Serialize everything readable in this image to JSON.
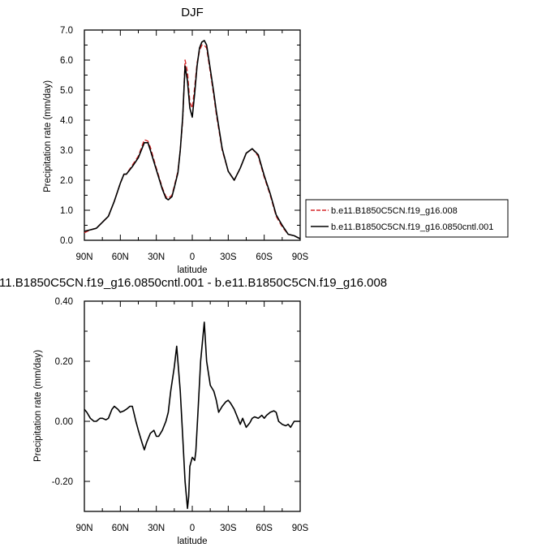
{
  "chart_data": [
    {
      "type": "line",
      "title": "DJF",
      "xlabel": "latitude",
      "ylabel": "Precipitation rate (mm/day)",
      "xlim": [
        -90,
        90
      ],
      "ylim": [
        0,
        7
      ],
      "x_ticks": [
        "90N",
        "60N",
        "30N",
        "0",
        "30S",
        "60S",
        "90S"
      ],
      "y_ticks": [
        "0.0",
        "1.0",
        "2.0",
        "3.0",
        "4.0",
        "5.0",
        "6.0",
        "7.0"
      ],
      "legend_position": "right",
      "series": [
        {
          "name": "b.e11.B1850C5CN.f19_g16.008",
          "color": "#d62728",
          "dash": true,
          "x": [
            -90,
            -85,
            -80,
            -75,
            -70,
            -65,
            -60,
            -57,
            -55,
            -50,
            -45,
            -40,
            -37,
            -35,
            -30,
            -25,
            -22,
            -20,
            -17,
            -15,
            -12,
            -10,
            -8,
            -6,
            -4,
            -2,
            0,
            2,
            4,
            6,
            8,
            10,
            12,
            15,
            18,
            20,
            25,
            30,
            35,
            40,
            45,
            50,
            55,
            60,
            65,
            70,
            75,
            80,
            85,
            90
          ],
          "values": [
            0.25,
            0.35,
            0.4,
            0.6,
            0.8,
            1.3,
            1.9,
            2.2,
            2.2,
            2.5,
            2.8,
            3.35,
            3.3,
            3.1,
            2.4,
            1.75,
            1.45,
            1.4,
            1.5,
            1.8,
            2.3,
            3.0,
            4.0,
            6.0,
            5.6,
            4.6,
            4.4,
            5.1,
            5.9,
            6.3,
            6.5,
            6.5,
            6.4,
            5.6,
            4.8,
            4.2,
            3.0,
            2.3,
            2.0,
            2.4,
            2.9,
            3.05,
            2.8,
            2.1,
            1.5,
            0.8,
            0.45,
            0.2,
            0.15,
            0.05
          ]
        },
        {
          "name": "b.e11.B1850C5CN.f19_g16.0850cntl.001",
          "color": "#000000",
          "dash": false,
          "x": [
            -90,
            -85,
            -80,
            -75,
            -70,
            -65,
            -60,
            -57,
            -55,
            -50,
            -45,
            -40,
            -37,
            -35,
            -30,
            -25,
            -22,
            -20,
            -17,
            -15,
            -12,
            -10,
            -8,
            -6,
            -4,
            -2,
            0,
            2,
            4,
            6,
            8,
            10,
            12,
            15,
            18,
            20,
            25,
            30,
            35,
            40,
            45,
            50,
            55,
            60,
            65,
            70,
            75,
            80,
            85,
            90
          ],
          "values": [
            0.3,
            0.35,
            0.4,
            0.6,
            0.8,
            1.3,
            1.9,
            2.2,
            2.2,
            2.45,
            2.75,
            3.25,
            3.25,
            3.0,
            2.35,
            1.7,
            1.4,
            1.35,
            1.45,
            1.75,
            2.25,
            3.0,
            4.1,
            5.8,
            5.3,
            4.4,
            4.1,
            4.9,
            5.8,
            6.4,
            6.6,
            6.65,
            6.5,
            5.7,
            4.9,
            4.3,
            3.05,
            2.3,
            2.0,
            2.4,
            2.9,
            3.05,
            2.85,
            2.15,
            1.55,
            0.85,
            0.5,
            0.2,
            0.15,
            0.05
          ]
        }
      ]
    },
    {
      "type": "line",
      "title": ":11.B1850C5CN.f19_g16.0850cntl.001 - b.e11.B1850C5CN.f19_g16.008",
      "xlabel": "latitude",
      "ylabel": "Precipitation rate (mm/day)",
      "xlim": [
        -90,
        90
      ],
      "ylim": [
        -0.3,
        0.4
      ],
      "x_ticks": [
        "90N",
        "60N",
        "30N",
        "0",
        "30S",
        "60S",
        "90S"
      ],
      "y_ticks": [
        "-0.20",
        "0.00",
        "0.20",
        "0.40"
      ],
      "series": [
        {
          "color": "#000000",
          "x": [
            -90,
            -88,
            -85,
            -82,
            -80,
            -77,
            -75,
            -72,
            -70,
            -67,
            -65,
            -62,
            -60,
            -57,
            -55,
            -52,
            -50,
            -47,
            -45,
            -42,
            -40,
            -38,
            -35,
            -32,
            -30,
            -28,
            -25,
            -22,
            -20,
            -18,
            -15,
            -13,
            -10,
            -8,
            -6,
            -4,
            -3,
            -2,
            0,
            2,
            3,
            5,
            7,
            10,
            12,
            15,
            18,
            20,
            22,
            25,
            28,
            30,
            32,
            35,
            38,
            40,
            42,
            45,
            48,
            50,
            52,
            55,
            58,
            60,
            62,
            65,
            68,
            70,
            72,
            75,
            78,
            80,
            82,
            85,
            88,
            90
          ],
          "values": [
            0.04,
            0.03,
            0.01,
            0.0,
            0.0,
            0.01,
            0.01,
            0.005,
            0.01,
            0.04,
            0.05,
            0.04,
            0.03,
            0.035,
            0.04,
            0.05,
            0.05,
            0.0,
            -0.03,
            -0.07,
            -0.095,
            -0.07,
            -0.04,
            -0.03,
            -0.05,
            -0.05,
            -0.03,
            0.0,
            0.03,
            0.1,
            0.18,
            0.25,
            0.1,
            -0.05,
            -0.2,
            -0.29,
            -0.25,
            -0.15,
            -0.12,
            -0.13,
            -0.1,
            0.05,
            0.2,
            0.33,
            0.2,
            0.12,
            0.1,
            0.07,
            0.03,
            0.05,
            0.065,
            0.07,
            0.06,
            0.04,
            0.01,
            -0.01,
            0.01,
            -0.02,
            -0.005,
            0.01,
            0.015,
            0.01,
            0.02,
            0.01,
            0.02,
            0.03,
            0.035,
            0.03,
            0.0,
            -0.01,
            -0.015,
            -0.01,
            -0.02,
            0.0,
            0.0,
            0.0
          ]
        }
      ]
    }
  ]
}
